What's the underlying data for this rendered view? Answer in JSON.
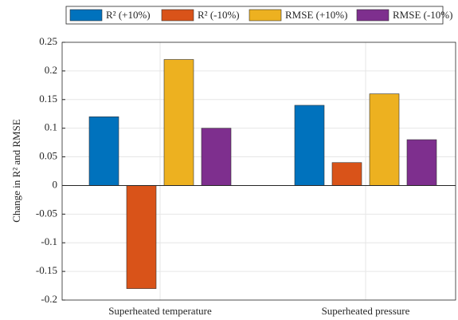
{
  "chart_data": {
    "type": "bar",
    "y_label": "Change in R² and RMSE",
    "categories": [
      "Superheated temperature",
      "Superheated pressure"
    ],
    "series": [
      {
        "name": "R² (+10%)",
        "color": "#0072BD",
        "values": [
          0.12,
          0.14
        ]
      },
      {
        "name": "R² (-10%)",
        "color": "#D95319",
        "values": [
          -0.18,
          0.04
        ]
      },
      {
        "name": "RMSE (+10%)",
        "color": "#EDB120",
        "values": [
          0.22,
          0.16
        ]
      },
      {
        "name": "RMSE (-10%)",
        "color": "#7E2F8E",
        "values": [
          0.1,
          0.08
        ]
      }
    ],
    "ylim": [
      -0.2,
      0.25
    ],
    "yticks": [
      -0.2,
      -0.15,
      -0.1,
      -0.05,
      0,
      0.05,
      0.1,
      0.15,
      0.2,
      0.25
    ],
    "grid": true
  }
}
